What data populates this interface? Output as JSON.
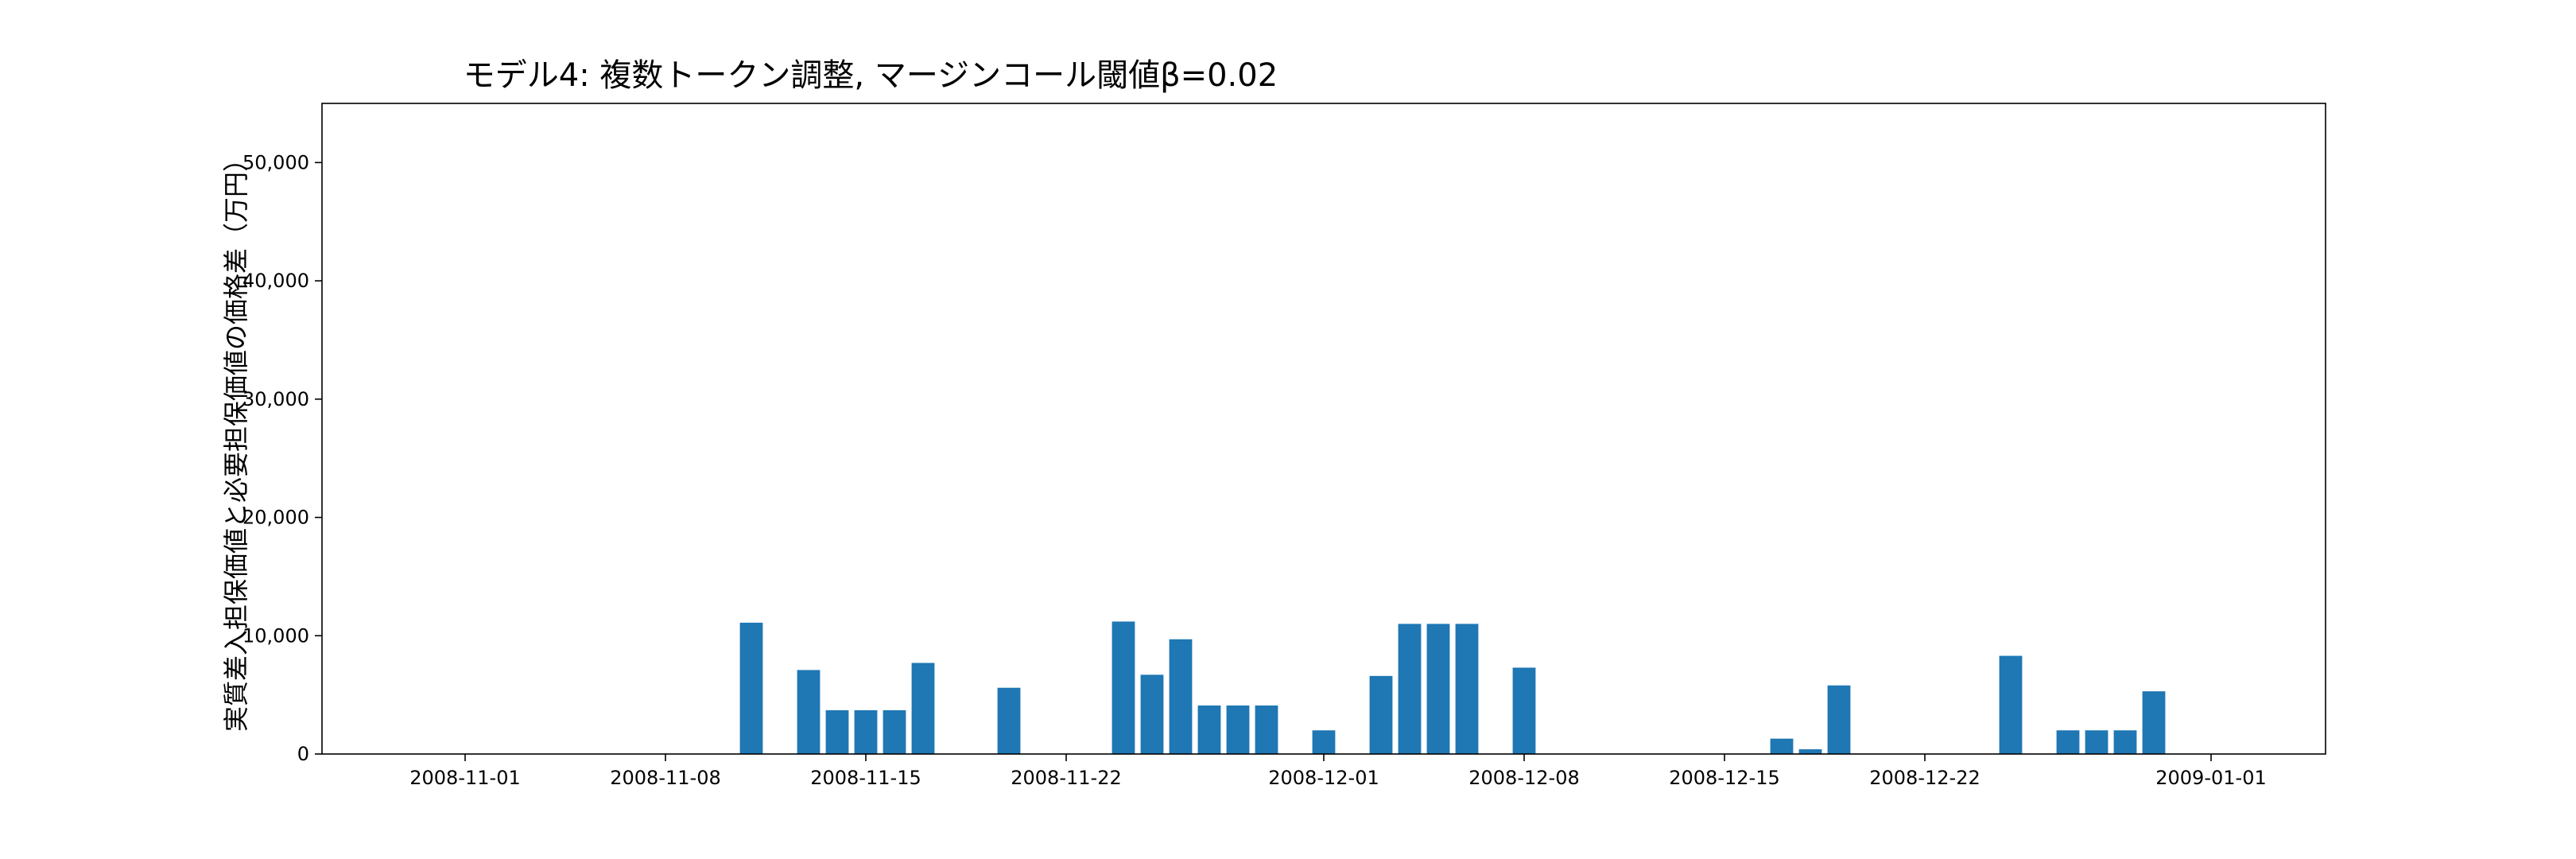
{
  "chart_data": {
    "type": "bar",
    "title": "モデル4: 複数トークン調整, マージンコール閾値β=0.02",
    "xlabel": "",
    "ylabel": "実質差入担保価値と必要担保価値の価格差（万円）",
    "xlim": [
      "2008-10-27",
      "2009-01-05"
    ],
    "ylim": [
      0,
      55000
    ],
    "grid": false,
    "legend": "none",
    "bar_color": "#1f77b4",
    "x_ticks": [
      "2008-11-01",
      "2008-11-08",
      "2008-11-15",
      "2008-11-22",
      "2008-12-01",
      "2008-12-08",
      "2008-12-15",
      "2008-12-22",
      "2009-01-01"
    ],
    "y_ticks": [
      0,
      10000,
      20000,
      30000,
      40000,
      50000
    ],
    "y_tick_labels": [
      "0",
      "10,000",
      "20,000",
      "30,000",
      "40,000",
      "50,000"
    ],
    "x": [
      "2008-11-11",
      "2008-11-13",
      "2008-11-14",
      "2008-11-15",
      "2008-11-16",
      "2008-11-17",
      "2008-11-20",
      "2008-11-24",
      "2008-11-25",
      "2008-11-26",
      "2008-11-27",
      "2008-11-28",
      "2008-11-29",
      "2008-12-01",
      "2008-12-03",
      "2008-12-04",
      "2008-12-05",
      "2008-12-06",
      "2008-12-08",
      "2008-12-17",
      "2008-12-18",
      "2008-12-19",
      "2008-12-25",
      "2008-12-27",
      "2008-12-28",
      "2008-12-29",
      "2008-12-30"
    ],
    "values": [
      11100,
      7100,
      3700,
      3700,
      3700,
      7700,
      5600,
      11200,
      6700,
      9700,
      4100,
      4100,
      4100,
      2000,
      6600,
      11000,
      11000,
      11000,
      7300,
      1300,
      400,
      5800,
      8300,
      2000,
      2000,
      2000,
      5300
    ]
  }
}
